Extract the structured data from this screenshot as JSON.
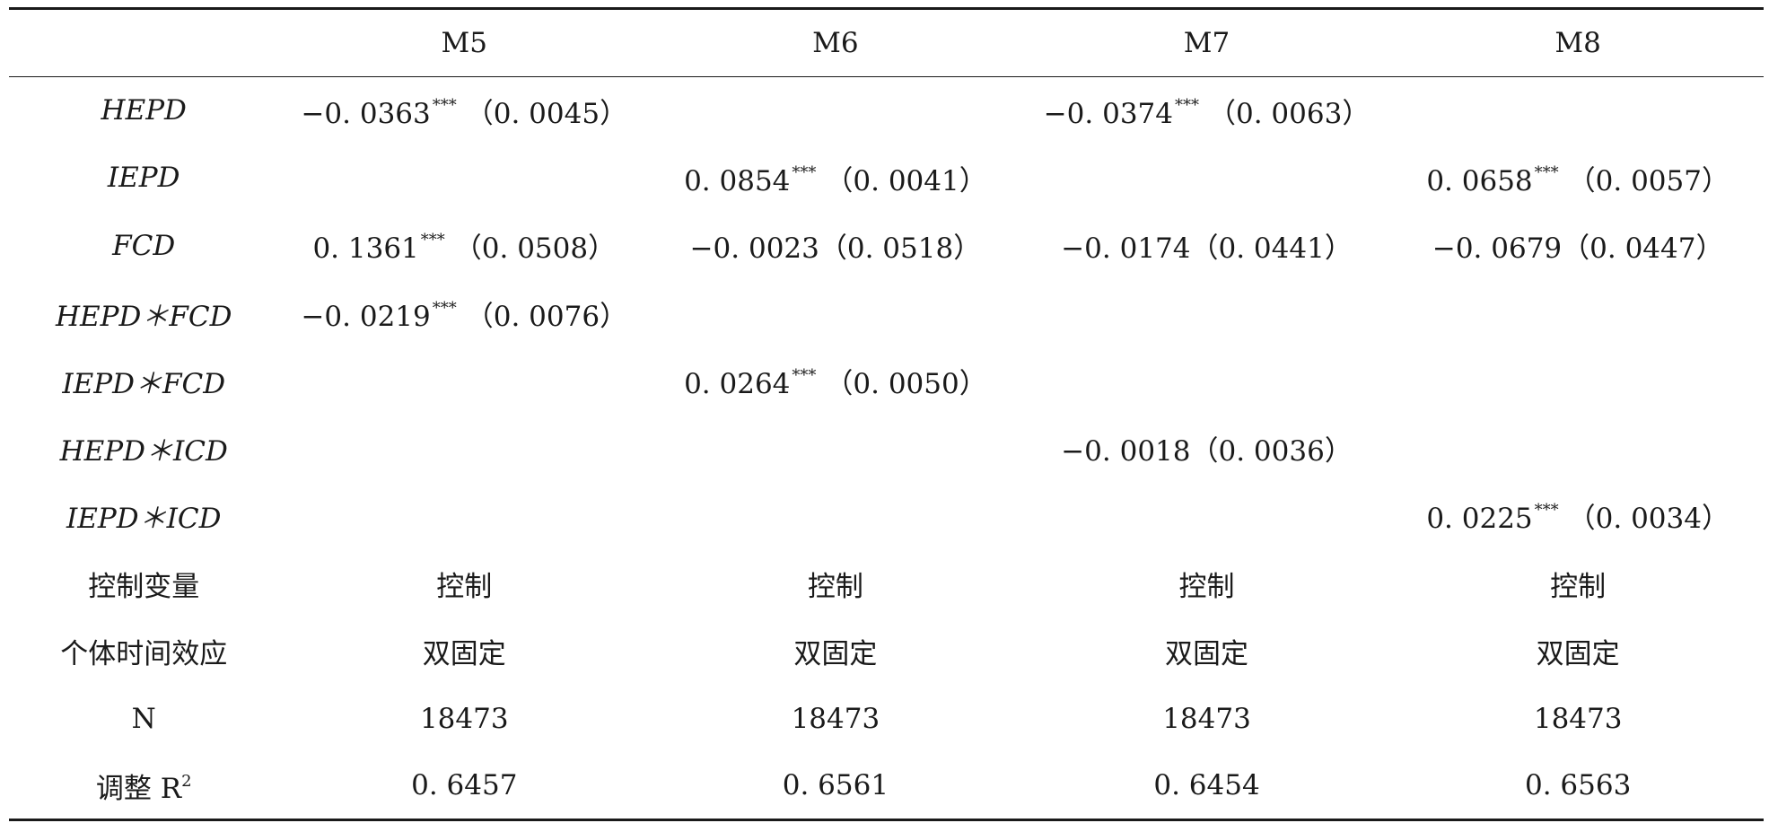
{
  "table": {
    "headers": [
      "",
      "M5",
      "M6",
      "M7",
      "M8"
    ],
    "rows": [
      {
        "label": "HEPD",
        "italic": true,
        "cells": [
          {
            "coef": "−0. 0363",
            "stars": "***",
            "se": "（0. 0045）"
          },
          null,
          {
            "coef": "−0. 0374",
            "stars": "***",
            "se": "（0. 0063）"
          },
          null
        ]
      },
      {
        "label": "IEPD",
        "italic": true,
        "cells": [
          null,
          {
            "coef": "0. 0854",
            "stars": "***",
            "se": "（0. 0041）"
          },
          null,
          {
            "coef": "0. 0658",
            "stars": "***",
            "se": "（0. 0057）"
          }
        ]
      },
      {
        "label": "FCD",
        "italic": true,
        "cells": [
          {
            "coef": "0. 1361",
            "stars": "***",
            "se": "（0. 0508）"
          },
          {
            "coef": "−0. 0023",
            "stars": "",
            "se": "（0. 0518）"
          },
          {
            "coef": "−0. 0174",
            "stars": "",
            "se": "（0. 0441）"
          },
          {
            "coef": "−0. 0679",
            "stars": "",
            "se": "（0. 0447）"
          }
        ]
      },
      {
        "label": "HEPD＊FCD",
        "italic": true,
        "cells": [
          {
            "coef": "−0. 0219",
            "stars": "***",
            "se": "（0. 0076）"
          },
          null,
          null,
          null
        ]
      },
      {
        "label": "IEPD＊FCD",
        "italic": true,
        "cells": [
          null,
          {
            "coef": "0. 0264",
            "stars": "***",
            "se": "（0. 0050）"
          },
          null,
          null
        ]
      },
      {
        "label": "HEPD＊ICD",
        "italic": true,
        "cells": [
          null,
          null,
          {
            "coef": "−0. 0018",
            "stars": "",
            "se": "（0. 0036）"
          },
          null
        ]
      },
      {
        "label": "IEPD＊ICD",
        "italic": true,
        "cells": [
          null,
          null,
          null,
          {
            "coef": "0. 0225",
            "stars": "***",
            "se": "（0. 0034）"
          }
        ]
      },
      {
        "label": "控制变量",
        "italic": false,
        "cells": [
          {
            "coef": "控制",
            "stars": "",
            "se": ""
          },
          {
            "coef": "控制",
            "stars": "",
            "se": ""
          },
          {
            "coef": "控制",
            "stars": "",
            "se": ""
          },
          {
            "coef": "控制",
            "stars": "",
            "se": ""
          }
        ]
      },
      {
        "label": "个体时间效应",
        "italic": false,
        "cells": [
          {
            "coef": "双固定",
            "stars": "",
            "se": ""
          },
          {
            "coef": "双固定",
            "stars": "",
            "se": ""
          },
          {
            "coef": "双固定",
            "stars": "",
            "se": ""
          },
          {
            "coef": "双固定",
            "stars": "",
            "se": ""
          }
        ]
      },
      {
        "label": "N",
        "italic": false,
        "cells": [
          {
            "coef": "18473",
            "stars": "",
            "se": ""
          },
          {
            "coef": "18473",
            "stars": "",
            "se": ""
          },
          {
            "coef": "18473",
            "stars": "",
            "se": ""
          },
          {
            "coef": "18473",
            "stars": "",
            "se": ""
          }
        ]
      },
      {
        "label": "调整 R",
        "label_sup": "2",
        "italic": false,
        "cells": [
          {
            "coef": "0. 6457",
            "stars": "",
            "se": ""
          },
          {
            "coef": "0. 6561",
            "stars": "",
            "se": ""
          },
          {
            "coef": "0. 6454",
            "stars": "",
            "se": ""
          },
          {
            "coef": "0. 6563",
            "stars": "",
            "se": ""
          }
        ]
      }
    ]
  }
}
